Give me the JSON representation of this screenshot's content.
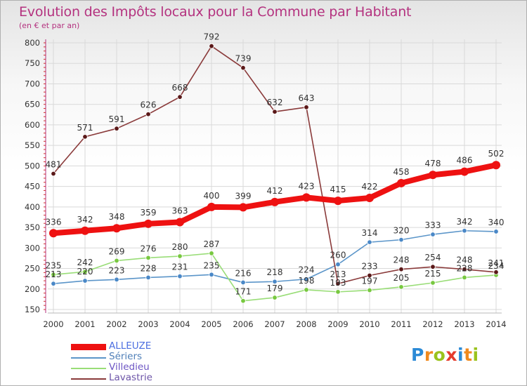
{
  "header": {
    "title": "Evolution des Impôts locaux pour la Commune par Habitant",
    "subtitle": "(en € et par an)"
  },
  "logo": {
    "text": "Proxiti"
  },
  "colors": {
    "title": "#b4327f",
    "axis_text": "#333333",
    "grid": "#d9d9d9"
  },
  "chart_data": {
    "type": "line",
    "title": "Evolution des Impôts locaux pour la Commune par Habitant",
    "subtitle": "(en € et par an)",
    "xlabel": "",
    "ylabel": "",
    "x": [
      2000,
      2001,
      2002,
      2003,
      2004,
      2005,
      2006,
      2007,
      2008,
      2009,
      2010,
      2011,
      2012,
      2013,
      2014
    ],
    "ylim": [
      150,
      800
    ],
    "yticks": [
      150,
      200,
      250,
      300,
      350,
      400,
      450,
      500,
      550,
      600,
      650,
      700,
      750,
      800
    ],
    "grid": true,
    "legend_position": "bottom-left",
    "series": [
      {
        "name": "ALLEUZE",
        "color": "#ee1111",
        "marker": "#ee1111",
        "emphasis": true,
        "values": [
          336,
          342,
          348,
          359,
          363,
          400,
          399,
          412,
          423,
          415,
          422,
          458,
          478,
          486,
          502
        ]
      },
      {
        "name": "Sériers",
        "color": "#5b95c9",
        "marker": "#4a88c7",
        "values": [
          213,
          220,
          223,
          228,
          231,
          235,
          216,
          218,
          224,
          260,
          314,
          320,
          333,
          342,
          340
        ]
      },
      {
        "name": "Villedieu",
        "color": "#99dd77",
        "marker": "#78c840",
        "values": [
          235,
          242,
          269,
          276,
          280,
          287,
          171,
          179,
          198,
          193,
          197,
          205,
          215,
          228,
          234
        ]
      },
      {
        "name": "Lavastrie",
        "color": "#8a3a3a",
        "marker": "#5a1818",
        "values": [
          481,
          571,
          591,
          626,
          668,
          792,
          739,
          632,
          643,
          213,
          233,
          248,
          254,
          248,
          241
        ]
      }
    ]
  }
}
